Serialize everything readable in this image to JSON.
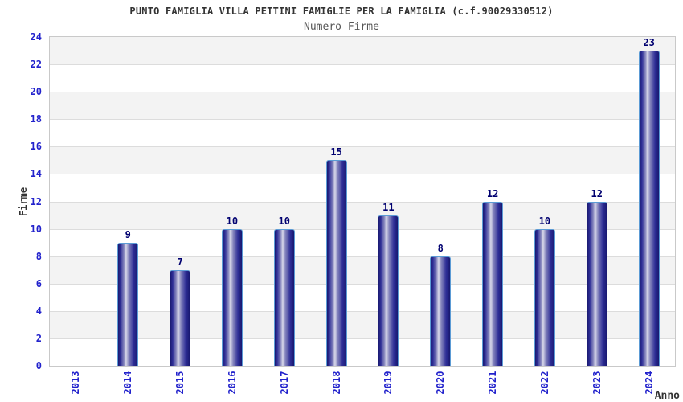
{
  "chart_data": {
    "type": "bar",
    "title": "PUNTO FAMIGLIA VILLA PETTINI FAMIGLIE PER LA FAMIGLIA (c.f.90029330512)",
    "subtitle": "Numero Firme",
    "xlabel": "Anno",
    "ylabel": "Firme",
    "categories": [
      "2013",
      "2014",
      "2015",
      "2016",
      "2017",
      "2018",
      "2019",
      "2020",
      "2021",
      "2022",
      "2023",
      "2024"
    ],
    "values": [
      0,
      9,
      7,
      10,
      10,
      15,
      11,
      8,
      12,
      10,
      12,
      23
    ],
    "ylim": [
      0,
      24
    ],
    "ytick_step": 2,
    "ytick_labels": [
      "0",
      "2",
      "4",
      "6",
      "8",
      "10",
      "12",
      "14",
      "16",
      "18",
      "20",
      "22",
      "24"
    ],
    "grid": "horizontal-bands",
    "legend": "none",
    "colors": {
      "tick_text": "#2222cc",
      "value_text": "#000070",
      "bar_edge_dark": "#181870",
      "bar_mid": "#2e2e96",
      "bar_body": "#8585bd",
      "bar_highlight": "#d8d8ea",
      "bar_border": "#5b9bd5",
      "band_gray": "#f3f3f3",
      "band_white": "#ffffff",
      "grid_line": "#dcdcdc",
      "plot_border": "#c9c9c9",
      "title_text": "#333333",
      "subtitle_text": "#555555",
      "axis_title_text": "#333333"
    }
  }
}
